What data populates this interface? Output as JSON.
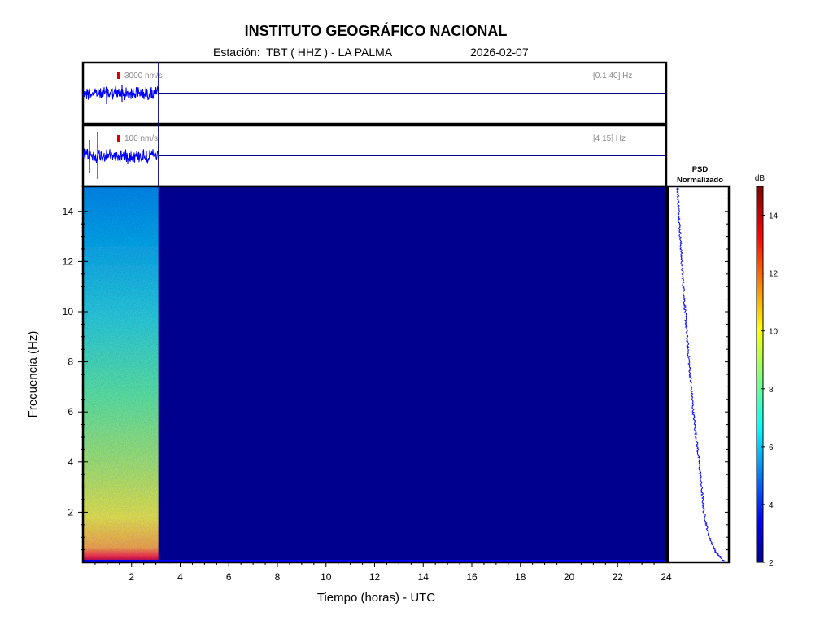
{
  "header": {
    "title": "INSTITUTO GEOGRÁFICO NACIONAL",
    "station": "Estación:  TBT ( HHZ ) - LA PALMA",
    "date": "2026-02-07"
  },
  "chart_data": [
    {
      "type": "line",
      "panel": "seismogram-broadband",
      "scale_label": "3000 nm/s",
      "band_label": "[0.1 40] Hz",
      "x_range": [
        0,
        24
      ],
      "data_end_hour": 3.1,
      "color": "#0000ff"
    },
    {
      "type": "line",
      "panel": "seismogram-filtered",
      "scale_label": "100 nm/s",
      "band_label": "[4 15] Hz",
      "x_range": [
        0,
        24
      ],
      "data_end_hour": 3.1,
      "color": "#0000ff"
    },
    {
      "type": "heatmap",
      "panel": "spectrogram",
      "xlabel": "Tiempo (horas) - UTC",
      "ylabel": "Frecuencia  (Hz)",
      "xlim": [
        0,
        24
      ],
      "ylim": [
        0,
        15
      ],
      "xticks": [
        2,
        4,
        6,
        8,
        10,
        12,
        14,
        16,
        18,
        20,
        22,
        24
      ],
      "yticks": [
        2,
        4,
        6,
        8,
        10,
        12,
        14
      ],
      "data_end_hour": 3.1,
      "background_color": "#00008f"
    },
    {
      "type": "line",
      "panel": "psd",
      "title": "PSD\nNormalizado",
      "title_lines": [
        "PSD",
        "Normalizado"
      ],
      "points": [
        [
          0.12,
          15
        ],
        [
          0.2,
          12
        ],
        [
          0.3,
          9
        ],
        [
          0.42,
          6
        ],
        [
          0.53,
          4
        ],
        [
          0.62,
          2
        ],
        [
          0.72,
          1
        ],
        [
          0.85,
          0.4
        ],
        [
          0.95,
          0.15
        ],
        [
          1.0,
          0.05
        ]
      ],
      "color": "#0000ff"
    },
    {
      "type": "colorbar",
      "label": "dB",
      "range": [
        2,
        15
      ],
      "ticks": [
        2,
        4,
        6,
        8,
        10,
        12,
        14
      ]
    }
  ]
}
